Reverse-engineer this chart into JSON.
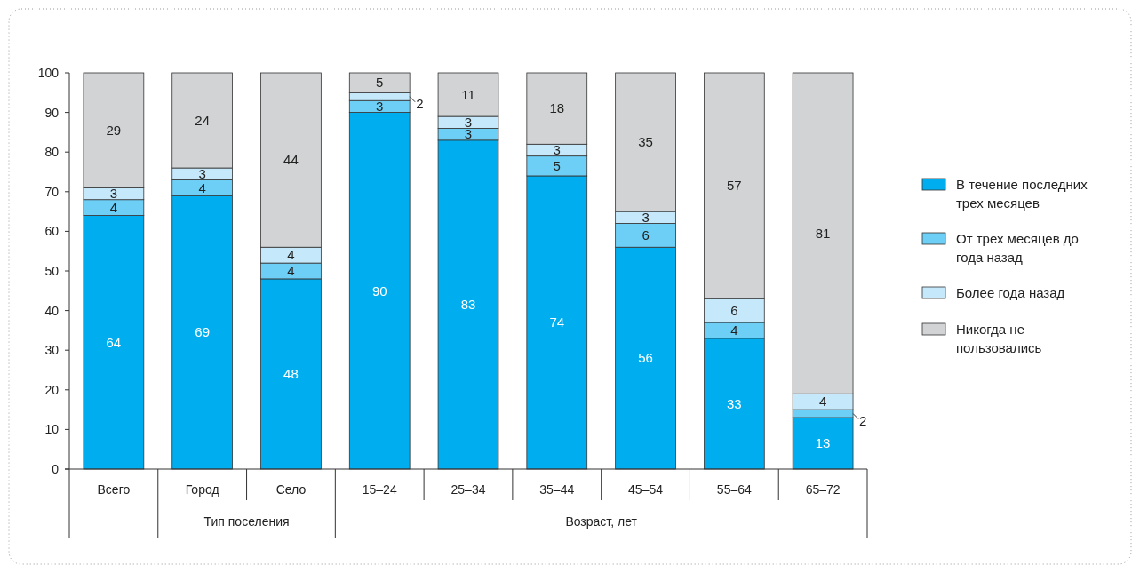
{
  "chart_data": {
    "type": "bar",
    "stacked": true,
    "categories": [
      "Всего",
      "Город",
      "Село",
      "15–24",
      "25–34",
      "35–44",
      "45–54",
      "55–64",
      "65–72"
    ],
    "series": [
      {
        "name": "В течение последних трех месяцев",
        "color": "#00aeef",
        "values": [
          64,
          69,
          48,
          90,
          83,
          74,
          56,
          33,
          13
        ]
      },
      {
        "name": "От трех месяцев до года назад",
        "color": "#6dcff6",
        "values": [
          4,
          4,
          4,
          3,
          3,
          5,
          6,
          4,
          2
        ]
      },
      {
        "name": "Более года назад",
        "color": "#c5e9fb",
        "values": [
          3,
          3,
          4,
          2,
          3,
          3,
          3,
          6,
          4
        ]
      },
      {
        "name": "Никогда не пользовались",
        "color": "#d1d3d4",
        "values": [
          29,
          24,
          44,
          5,
          11,
          18,
          35,
          57,
          81
        ]
      }
    ],
    "ylim": [
      0,
      100
    ],
    "yticks": [
      0,
      10,
      20,
      30,
      40,
      50,
      60,
      70,
      80,
      90,
      100
    ],
    "data_labels": true,
    "legend": "right",
    "grid": false,
    "annotations": [
      "Тип поселения",
      "Возраст, лет"
    ]
  }
}
